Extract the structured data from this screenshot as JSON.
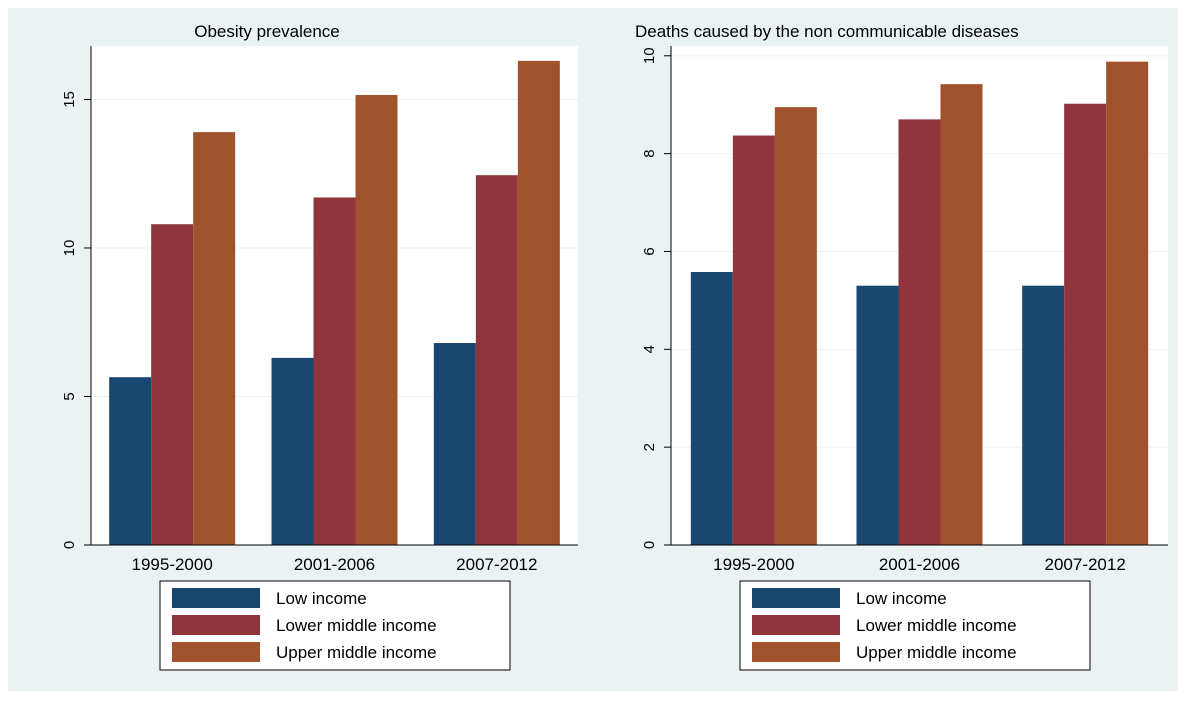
{
  "chart_data": [
    {
      "type": "bar",
      "title": "Obesity prevalence",
      "categories": [
        "1995-2000",
        "2001-2006",
        "2007-2012"
      ],
      "ylim": [
        0,
        16.8
      ],
      "yticks": [
        "0",
        "5",
        "10",
        "15"
      ],
      "ytick_values": [
        0,
        5,
        10,
        15
      ],
      "grid": true,
      "legend_position": "bottom",
      "series": [
        {
          "name": "Low income",
          "color": "#1a476f",
          "values": [
            5.65,
            6.3,
            6.8
          ]
        },
        {
          "name": "Lower middle income",
          "color": "#90353b",
          "values": [
            10.8,
            11.7,
            12.45
          ]
        },
        {
          "name": "Upper middle income",
          "color": "#a0522d",
          "values": [
            13.9,
            15.15,
            16.3
          ]
        }
      ]
    },
    {
      "type": "bar",
      "title": "Deaths caused by the non communicable diseases",
      "categories": [
        "1995-2000",
        "2001-2006",
        "2007-2012"
      ],
      "ylim": [
        0,
        10.2
      ],
      "yticks": [
        "0",
        "2",
        "4",
        "6",
        "8",
        "10"
      ],
      "ytick_values": [
        0,
        2,
        4,
        6,
        8,
        10
      ],
      "grid": true,
      "legend_position": "bottom",
      "series": [
        {
          "name": "Low income",
          "color": "#1a476f",
          "values": [
            5.58,
            5.3,
            5.3
          ]
        },
        {
          "name": "Lower middle income",
          "color": "#90353b",
          "values": [
            8.37,
            8.7,
            9.02
          ]
        },
        {
          "name": "Upper middle income",
          "color": "#a0522d",
          "values": [
            8.95,
            9.42,
            9.88
          ]
        }
      ]
    }
  ]
}
